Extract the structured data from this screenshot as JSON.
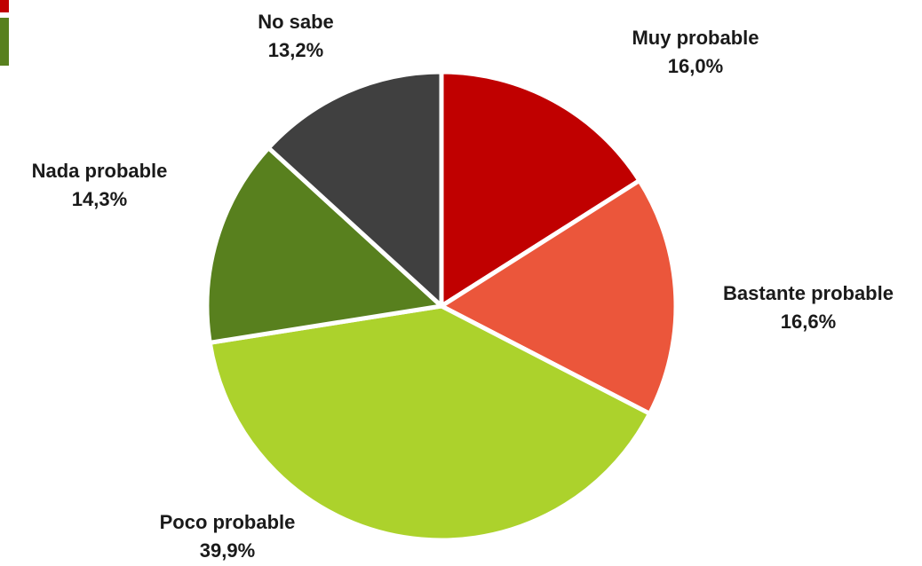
{
  "chart_data": {
    "type": "pie",
    "slices": [
      {
        "label": "Muy probable",
        "value": 16.0,
        "value_text": "16,0%",
        "color": "#c00000"
      },
      {
        "label": "Bastante probable",
        "value": 16.6,
        "value_text": "16,6%",
        "color": "#eb563b"
      },
      {
        "label": "Poco probable",
        "value": 39.9,
        "value_text": "39,9%",
        "color": "#acd22c"
      },
      {
        "label": "Nada probable",
        "value": 14.3,
        "value_text": "14,3%",
        "color": "#58801e"
      },
      {
        "label": "No sabe",
        "value": 13.2,
        "value_text": "13,2%",
        "color": "#404040"
      }
    ],
    "start_angle": "12 o'clock",
    "direction": "clockwise",
    "legend": "none"
  },
  "edge_markers": {
    "top_color": "#c00000",
    "bottom_color": "#58801e"
  }
}
